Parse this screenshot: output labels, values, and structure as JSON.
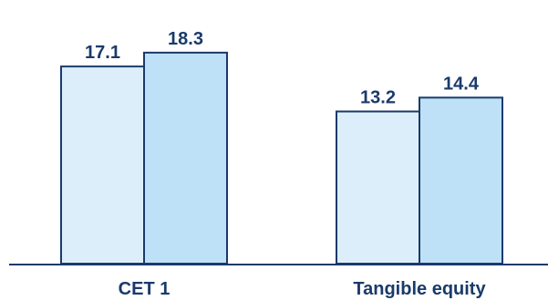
{
  "chart_data": {
    "type": "bar",
    "categories": [
      "CET 1",
      "Tangible equity"
    ],
    "series": [
      {
        "values": [
          17.1,
          13.2
        ],
        "fill": "#ddeefb"
      },
      {
        "values": [
          18.3,
          14.4
        ],
        "fill": "#bfe1f8"
      }
    ],
    "stroke_color": "#1a3a6b",
    "label_color": "#1a3a6b",
    "ylim": [
      0,
      20.5
    ],
    "legend": "none",
    "grid": false,
    "data_labels": true
  }
}
